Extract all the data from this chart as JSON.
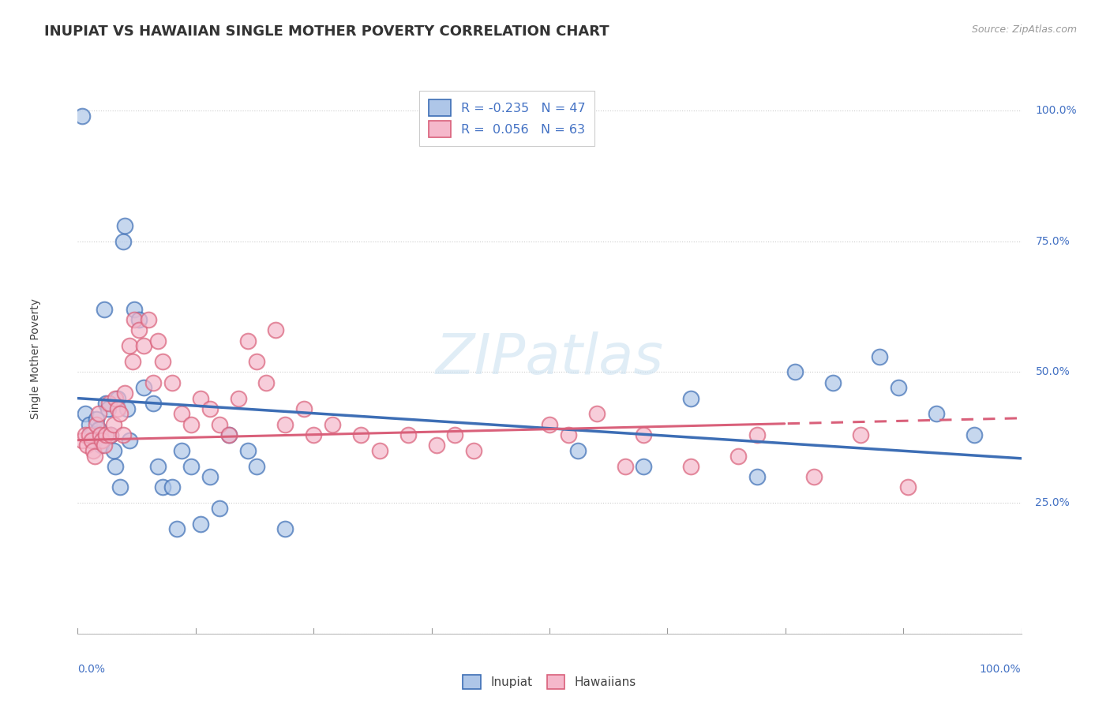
{
  "title": "INUPIAT VS HAWAIIAN SINGLE MOTHER POVERTY CORRELATION CHART",
  "source": "Source: ZipAtlas.com",
  "ylabel": "Single Mother Poverty",
  "legend_entry1": "R = -0.235   N = 47",
  "legend_entry2": "R =  0.056   N = 63",
  "legend_label1": "Inupiat",
  "legend_label2": "Hawaiians",
  "inupiat_color": "#aec6e8",
  "hawaiian_color": "#f5b8cb",
  "inupiat_line_color": "#3d6eb5",
  "hawaiian_line_color": "#d9607a",
  "watermark": "ZIPatlas",
  "inupiat_x": [
    0.005,
    0.008,
    0.012,
    0.015,
    0.018,
    0.02,
    0.022,
    0.025,
    0.028,
    0.03,
    0.032,
    0.035,
    0.038,
    0.04,
    0.042,
    0.045,
    0.048,
    0.05,
    0.052,
    0.055,
    0.06,
    0.065,
    0.07,
    0.08,
    0.085,
    0.09,
    0.1,
    0.105,
    0.11,
    0.12,
    0.13,
    0.14,
    0.15,
    0.16,
    0.18,
    0.19,
    0.22,
    0.53,
    0.6,
    0.65,
    0.72,
    0.76,
    0.8,
    0.85,
    0.87,
    0.91,
    0.95
  ],
  "inupiat_y": [
    0.99,
    0.42,
    0.4,
    0.38,
    0.37,
    0.41,
    0.39,
    0.36,
    0.62,
    0.44,
    0.43,
    0.38,
    0.35,
    0.32,
    0.45,
    0.28,
    0.75,
    0.78,
    0.43,
    0.37,
    0.62,
    0.6,
    0.47,
    0.44,
    0.32,
    0.28,
    0.28,
    0.2,
    0.35,
    0.32,
    0.21,
    0.3,
    0.24,
    0.38,
    0.35,
    0.32,
    0.2,
    0.35,
    0.32,
    0.45,
    0.3,
    0.5,
    0.48,
    0.53,
    0.47,
    0.42,
    0.38
  ],
  "hawaiian_x": [
    0.005,
    0.008,
    0.01,
    0.012,
    0.015,
    0.016,
    0.018,
    0.02,
    0.022,
    0.024,
    0.026,
    0.028,
    0.03,
    0.033,
    0.035,
    0.038,
    0.04,
    0.042,
    0.045,
    0.048,
    0.05,
    0.055,
    0.058,
    0.06,
    0.065,
    0.07,
    0.075,
    0.08,
    0.085,
    0.09,
    0.1,
    0.11,
    0.12,
    0.13,
    0.14,
    0.15,
    0.16,
    0.17,
    0.18,
    0.19,
    0.2,
    0.21,
    0.22,
    0.24,
    0.25,
    0.27,
    0.3,
    0.32,
    0.35,
    0.38,
    0.4,
    0.42,
    0.5,
    0.52,
    0.55,
    0.58,
    0.6,
    0.65,
    0.7,
    0.72,
    0.78,
    0.83,
    0.88
  ],
  "hawaiian_y": [
    0.37,
    0.38,
    0.36,
    0.38,
    0.37,
    0.35,
    0.34,
    0.4,
    0.42,
    0.38,
    0.37,
    0.36,
    0.38,
    0.44,
    0.38,
    0.4,
    0.45,
    0.43,
    0.42,
    0.38,
    0.46,
    0.55,
    0.52,
    0.6,
    0.58,
    0.55,
    0.6,
    0.48,
    0.56,
    0.52,
    0.48,
    0.42,
    0.4,
    0.45,
    0.43,
    0.4,
    0.38,
    0.45,
    0.56,
    0.52,
    0.48,
    0.58,
    0.4,
    0.43,
    0.38,
    0.4,
    0.38,
    0.35,
    0.38,
    0.36,
    0.38,
    0.35,
    0.4,
    0.38,
    0.42,
    0.32,
    0.38,
    0.32,
    0.34,
    0.38,
    0.3,
    0.38,
    0.28
  ],
  "xlim": [
    0.0,
    1.0
  ],
  "ylim": [
    0.0,
    1.05
  ],
  "grid_yticks": [
    0.0,
    0.25,
    0.5,
    0.75,
    1.0
  ],
  "grid_color": "#cccccc",
  "background_color": "#ffffff",
  "title_fontsize": 13,
  "axis_label_fontsize": 10,
  "tick_fontsize": 10,
  "inupiat_R": -0.235,
  "inupiat_intercept": 0.45,
  "inupiat_slope": -0.115,
  "hawaiian_R": 0.056,
  "hawaiian_intercept": 0.37,
  "hawaiian_slope": 0.042
}
